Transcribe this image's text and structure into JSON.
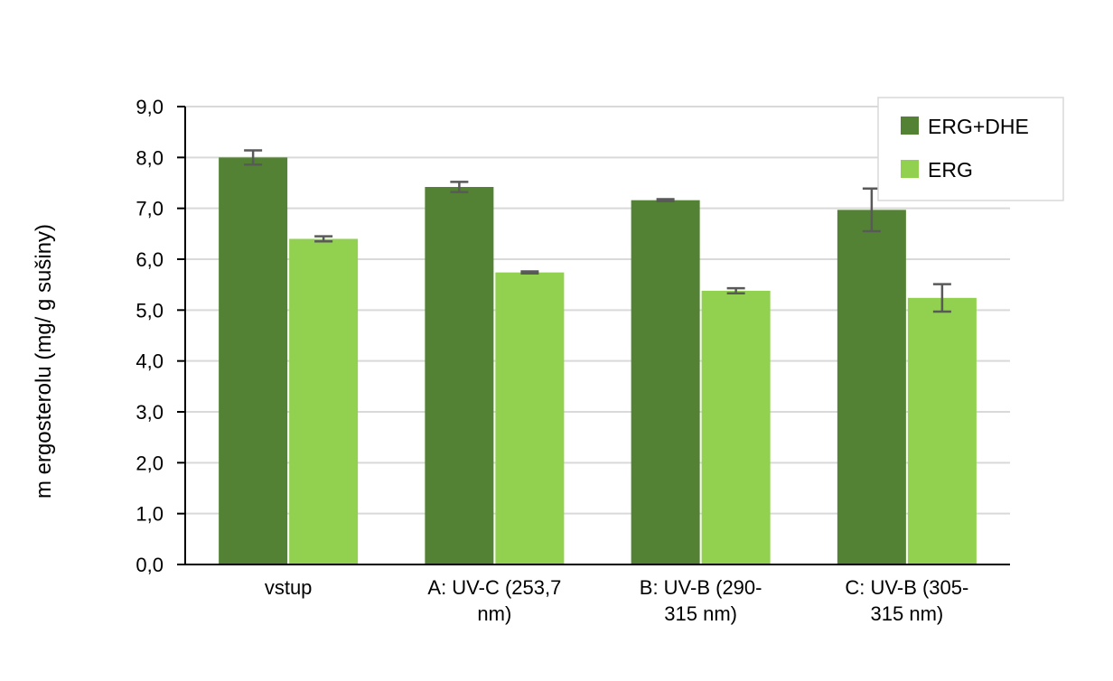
{
  "chart_data": {
    "type": "bar",
    "title": "",
    "xlabel": "",
    "ylabel": "m ergosterolu (mg/ g sušiny)",
    "ylim": [
      0,
      9
    ],
    "yticks": [
      "0,0",
      "1,0",
      "2,0",
      "3,0",
      "4,0",
      "5,0",
      "6,0",
      "7,0",
      "8,0",
      "9,0"
    ],
    "categories": [
      [
        "vstup"
      ],
      [
        "A: UV-C (253,7",
        "nm)"
      ],
      [
        "B: UV-B (290-",
        "315 nm)"
      ],
      [
        "C: UV-B (305-",
        "315 nm)"
      ]
    ],
    "series": [
      {
        "name": "ERG+DHE",
        "color": "#548235",
        "values": [
          8.0,
          7.42,
          7.16,
          6.97
        ],
        "errors": [
          0.14,
          0.1,
          0.02,
          0.42
        ]
      },
      {
        "name": "ERG",
        "color": "#92d050",
        "values": [
          6.4,
          5.74,
          5.38,
          5.24
        ],
        "errors": [
          0.05,
          0.02,
          0.05,
          0.27
        ]
      }
    ],
    "grid": true,
    "legend_position": "top-right"
  }
}
